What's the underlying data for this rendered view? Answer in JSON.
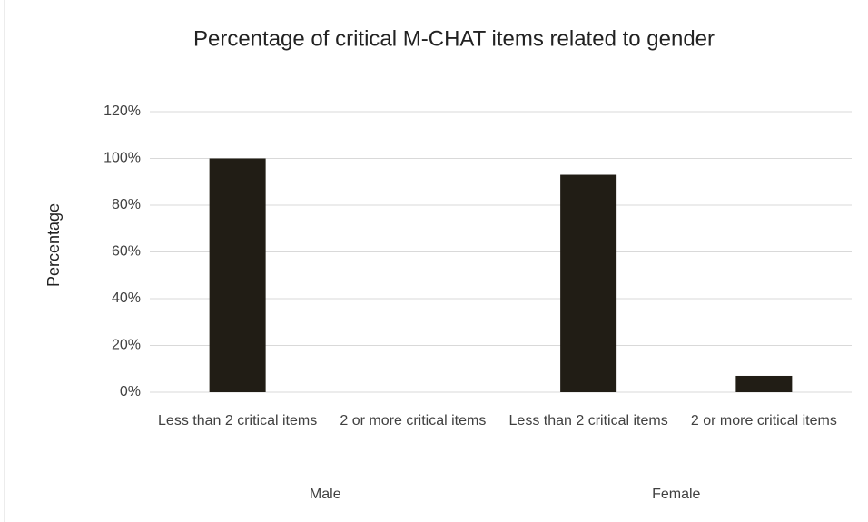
{
  "chart_data": {
    "type": "bar",
    "title": "Percentage of critical M-CHAT items related to  gender",
    "y_label": "Percentage",
    "categories": [
      "Less than 2 critical items",
      "2 or more critical items",
      "Less than 2 critical items",
      "2 or more critical items"
    ],
    "group_labels": [
      "Male",
      "Female"
    ],
    "values": [
      100,
      0,
      93,
      7
    ],
    "color": "#211d15",
    "ylim": [
      0,
      120
    ],
    "yticks": [
      {
        "value": 0,
        "label": "0%"
      },
      {
        "value": 20,
        "label": "20%"
      },
      {
        "value": 40,
        "label": "40%"
      },
      {
        "value": 60,
        "label": "60%"
      },
      {
        "value": 80,
        "label": "80%"
      },
      {
        "value": 100,
        "label": "100%"
      },
      {
        "value": 120,
        "label": "120%"
      }
    ],
    "grid": true
  }
}
